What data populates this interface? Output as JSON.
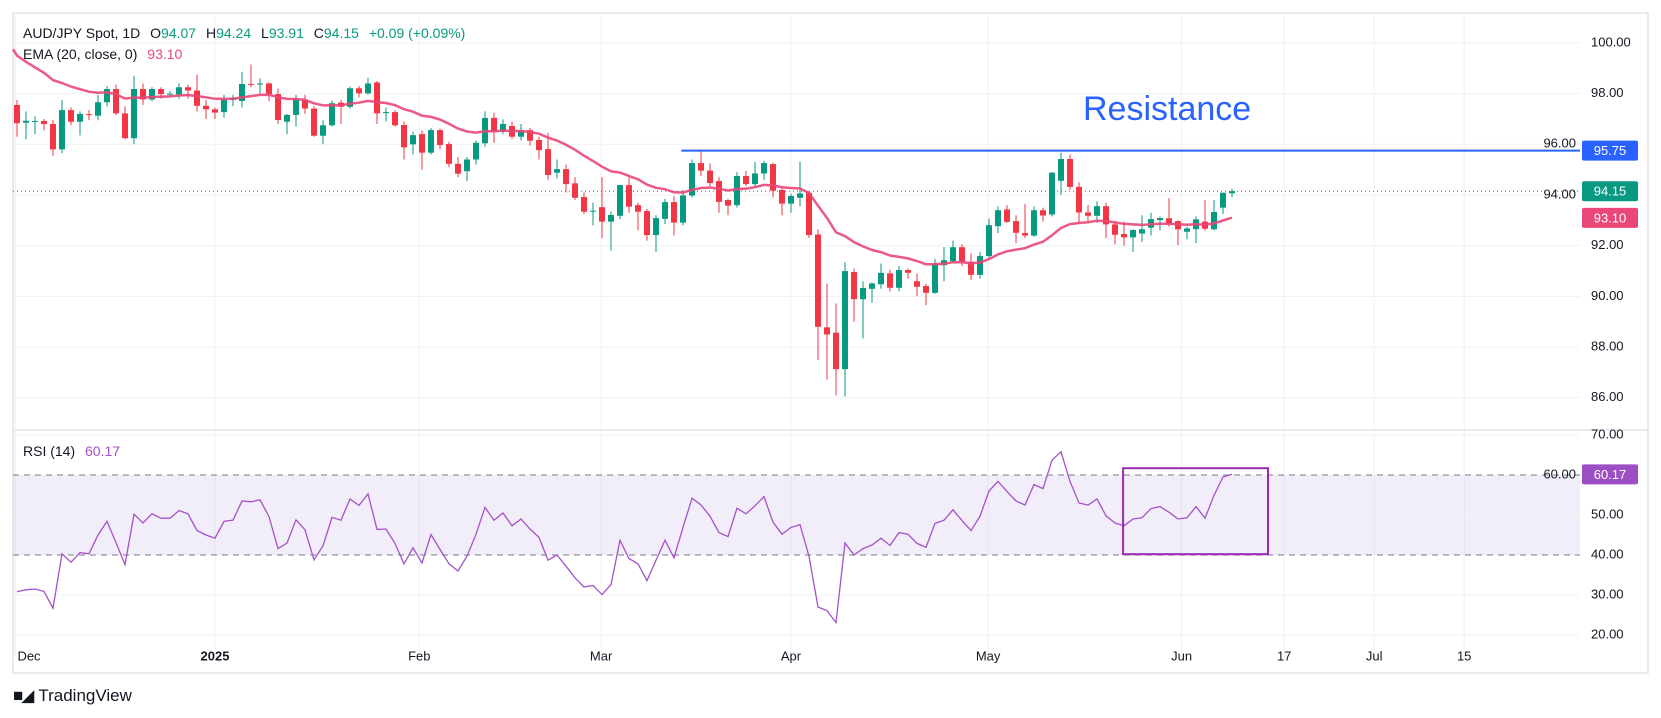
{
  "header": {
    "symbol": "AUD/JPY Spot, 1D",
    "open_label": "O",
    "open": "94.07",
    "high_label": "H",
    "high": "94.24",
    "low_label": "L",
    "low": "93.91",
    "close_label": "C",
    "close": "94.15",
    "change": "+0.09 (+0.09%)",
    "ema_label": "EMA (20, close, 0)",
    "ema_value": "93.10",
    "rsi_label": "RSI (14)",
    "rsi_value": "60.17"
  },
  "branding": {
    "logo_text": "TradingView",
    "logo_mark": "TV"
  },
  "colors": {
    "up": "#089981",
    "down": "#f23645",
    "ema": "#e94777",
    "rsi": "#a552c9",
    "resistance": "#2962ff",
    "rsi_box": "#9c27b0"
  },
  "chart_data": [
    {
      "type": "candlestick",
      "title": "AUD/JPY Spot, 1D",
      "ylim": [
        85.5,
        100.6
      ],
      "yticks": [
        "100.00",
        "98.00",
        "96.00",
        "94.00",
        "92.00",
        "90.00",
        "88.00",
        "86.00"
      ],
      "ytick_values": [
        100,
        98,
        96,
        94,
        92,
        90,
        88,
        86
      ],
      "xticks": [
        {
          "label": "Dec",
          "bar": -0.2,
          "bold": false
        },
        {
          "label": "2025",
          "bar": 22,
          "bold": true
        },
        {
          "label": "Feb",
          "bar": 44.7,
          "bold": false
        },
        {
          "label": "Mar",
          "bar": 64.9,
          "bold": false
        },
        {
          "label": "Apr",
          "bar": 86,
          "bold": false
        },
        {
          "label": "May",
          "bar": 107.9,
          "bold": false
        },
        {
          "label": "Jun",
          "bar": 129.4,
          "bold": false
        },
        {
          "label": "17",
          "bar": 140.8,
          "bold": false
        },
        {
          "label": "Jul",
          "bar": 150.8,
          "bold": false
        },
        {
          "label": "15",
          "bar": 160.8,
          "bold": false
        }
      ],
      "ohlc": [
        [
          97.55,
          97.75,
          96.3,
          96.83
        ],
        [
          96.85,
          97.3,
          96.2,
          96.93
        ],
        [
          96.92,
          97.1,
          96.4,
          96.92
        ],
        [
          96.92,
          97.0,
          96.55,
          96.8
        ],
        [
          96.8,
          96.95,
          95.55,
          95.8
        ],
        [
          95.8,
          97.75,
          95.65,
          97.35
        ],
        [
          97.35,
          97.45,
          96.75,
          96.89
        ],
        [
          96.89,
          97.3,
          96.35,
          97.2
        ],
        [
          97.19,
          97.35,
          96.95,
          97.16
        ],
        [
          97.13,
          97.95,
          96.95,
          97.66
        ],
        [
          97.66,
          98.3,
          97.5,
          98.18
        ],
        [
          98.18,
          98.35,
          97.15,
          97.22
        ],
        [
          97.22,
          97.5,
          96.2,
          96.24
        ],
        [
          96.24,
          98.7,
          96.0,
          98.18
        ],
        [
          98.18,
          98.4,
          97.55,
          97.77
        ],
        [
          97.77,
          98.25,
          97.7,
          98.18
        ],
        [
          98.18,
          98.25,
          97.8,
          97.98
        ],
        [
          98.0,
          98.1,
          97.9,
          98.0
        ],
        [
          97.97,
          98.4,
          97.8,
          98.25
        ],
        [
          98.25,
          98.35,
          97.8,
          98.12
        ],
        [
          98.12,
          98.75,
          97.3,
          97.52
        ],
        [
          97.52,
          97.75,
          97.0,
          97.38
        ],
        [
          97.38,
          97.45,
          97.0,
          97.25
        ],
        [
          97.27,
          97.95,
          97.05,
          97.75
        ],
        [
          97.75,
          97.95,
          97.5,
          97.84
        ],
        [
          97.71,
          98.85,
          97.45,
          98.38
        ],
        [
          98.38,
          99.15,
          98.25,
          98.37
        ],
        [
          98.37,
          98.6,
          98.0,
          98.4
        ],
        [
          98.4,
          98.45,
          97.7,
          97.98
        ],
        [
          97.98,
          98.2,
          96.8,
          96.96
        ],
        [
          96.89,
          97.2,
          96.4,
          97.16
        ],
        [
          97.16,
          97.95,
          96.7,
          97.75
        ],
        [
          97.75,
          97.95,
          97.2,
          97.41
        ],
        [
          97.41,
          97.5,
          96.3,
          96.34
        ],
        [
          96.34,
          96.95,
          96.0,
          96.75
        ],
        [
          96.75,
          97.73,
          96.7,
          97.62
        ],
        [
          97.64,
          97.75,
          96.8,
          97.48
        ],
        [
          97.48,
          98.28,
          97.4,
          98.21
        ],
        [
          98.21,
          98.3,
          97.85,
          98.01
        ],
        [
          98.01,
          98.62,
          97.95,
          98.4
        ],
        [
          98.44,
          98.5,
          96.8,
          97.22
        ],
        [
          97.27,
          97.45,
          96.9,
          97.27
        ],
        [
          97.27,
          97.35,
          96.7,
          96.75
        ],
        [
          96.76,
          96.9,
          95.4,
          95.88
        ],
        [
          96.0,
          96.5,
          95.6,
          96.36
        ],
        [
          96.4,
          96.55,
          95.0,
          95.67
        ],
        [
          95.67,
          96.65,
          95.6,
          96.56
        ],
        [
          96.56,
          96.62,
          95.8,
          95.97
        ],
        [
          96.01,
          96.1,
          95.1,
          95.23
        ],
        [
          95.23,
          95.5,
          94.7,
          94.84
        ],
        [
          94.94,
          95.5,
          94.55,
          95.4
        ],
        [
          95.4,
          96.15,
          95.2,
          96.06
        ],
        [
          96.04,
          97.3,
          95.9,
          97.04
        ],
        [
          97.04,
          97.25,
          96.05,
          96.5
        ],
        [
          96.5,
          96.98,
          96.4,
          96.8
        ],
        [
          96.72,
          96.9,
          96.2,
          96.3
        ],
        [
          96.3,
          96.8,
          96.15,
          96.56
        ],
        [
          96.56,
          96.65,
          95.95,
          96.14
        ],
        [
          96.17,
          96.3,
          95.4,
          95.77
        ],
        [
          95.81,
          96.45,
          94.6,
          94.79
        ],
        [
          94.88,
          95.4,
          94.65,
          95.02
        ],
        [
          95.02,
          95.2,
          94.1,
          94.43
        ],
        [
          94.46,
          94.7,
          93.8,
          93.89
        ],
        [
          93.92,
          94.1,
          93.25,
          93.34
        ],
        [
          93.38,
          93.7,
          92.8,
          93.38
        ],
        [
          93.52,
          94.7,
          92.3,
          92.95
        ],
        [
          92.95,
          93.35,
          91.8,
          93.21
        ],
        [
          93.18,
          94.4,
          93.05,
          94.39
        ],
        [
          94.39,
          94.7,
          93.3,
          93.54
        ],
        [
          93.6,
          93.7,
          92.6,
          93.34
        ],
        [
          93.37,
          93.45,
          92.2,
          92.42
        ],
        [
          92.42,
          93.2,
          91.75,
          93.09
        ],
        [
          93.06,
          93.85,
          92.85,
          93.72
        ],
        [
          93.72,
          93.95,
          92.4,
          92.91
        ],
        [
          92.91,
          94.2,
          92.8,
          93.98
        ],
        [
          93.98,
          95.4,
          93.9,
          95.26
        ],
        [
          95.26,
          95.73,
          94.75,
          94.96
        ],
        [
          94.96,
          95.25,
          94.35,
          94.47
        ],
        [
          94.55,
          94.7,
          93.3,
          93.73
        ],
        [
          93.8,
          93.85,
          93.2,
          93.58
        ],
        [
          93.6,
          94.9,
          93.5,
          94.75
        ],
        [
          94.75,
          94.95,
          94.35,
          94.43
        ],
        [
          94.43,
          95.3,
          94.3,
          94.85
        ],
        [
          94.85,
          95.35,
          94.6,
          95.26
        ],
        [
          95.22,
          95.28,
          93.9,
          94.17
        ],
        [
          94.2,
          94.35,
          93.2,
          93.66
        ],
        [
          93.66,
          94.05,
          93.3,
          93.96
        ],
        [
          93.89,
          95.31,
          93.55,
          94.06
        ],
        [
          94.09,
          94.15,
          92.3,
          92.42
        ],
        [
          92.44,
          92.65,
          87.49,
          88.8
        ],
        [
          88.78,
          90.51,
          86.72,
          88.5
        ],
        [
          88.57,
          89.72,
          86.1,
          87.13
        ],
        [
          87.13,
          91.35,
          86.05,
          91.0
        ],
        [
          90.96,
          91.1,
          89.0,
          89.89
        ],
        [
          89.89,
          90.6,
          88.34,
          90.33
        ],
        [
          90.3,
          90.55,
          89.75,
          90.51
        ],
        [
          90.48,
          91.3,
          90.3,
          90.93
        ],
        [
          90.91,
          91.05,
          90.2,
          90.34
        ],
        [
          90.34,
          91.2,
          90.2,
          91.04
        ],
        [
          91.04,
          91.1,
          90.7,
          90.93
        ],
        [
          90.6,
          90.9,
          90.0,
          90.38
        ],
        [
          90.41,
          90.5,
          89.65,
          90.14
        ],
        [
          90.14,
          91.48,
          90.1,
          91.29
        ],
        [
          91.23,
          91.95,
          90.6,
          91.43
        ],
        [
          91.39,
          92.2,
          91.3,
          91.94
        ],
        [
          91.94,
          92.05,
          91.2,
          91.37
        ],
        [
          91.37,
          91.7,
          90.65,
          90.85
        ],
        [
          90.85,
          91.75,
          90.7,
          91.59
        ],
        [
          91.59,
          93.07,
          91.5,
          92.81
        ],
        [
          92.77,
          93.55,
          92.5,
          93.4
        ],
        [
          93.43,
          93.6,
          92.9,
          92.94
        ],
        [
          92.97,
          93.2,
          92.1,
          92.51
        ],
        [
          92.5,
          93.65,
          92.3,
          92.4
        ],
        [
          92.4,
          93.55,
          92.35,
          93.4
        ],
        [
          93.4,
          93.5,
          92.95,
          93.19
        ],
        [
          93.23,
          94.9,
          93.15,
          94.88
        ],
        [
          94.56,
          95.67,
          94.0,
          95.42
        ],
        [
          95.42,
          95.6,
          94.2,
          94.32
        ],
        [
          94.32,
          94.5,
          92.9,
          93.31
        ],
        [
          93.31,
          93.6,
          92.95,
          93.18
        ],
        [
          93.18,
          93.75,
          92.9,
          93.56
        ],
        [
          93.56,
          93.7,
          92.3,
          92.84
        ],
        [
          92.84,
          92.95,
          92.05,
          92.43
        ],
        [
          92.46,
          92.95,
          92.0,
          92.33
        ],
        [
          92.33,
          92.65,
          91.75,
          92.62
        ],
        [
          92.48,
          93.2,
          92.15,
          92.65
        ],
        [
          92.71,
          93.3,
          92.4,
          93.05
        ],
        [
          93.01,
          93.15,
          92.6,
          93.09
        ],
        [
          93.08,
          93.87,
          92.75,
          92.86
        ],
        [
          92.97,
          93.0,
          92.03,
          92.65
        ],
        [
          92.55,
          92.75,
          92.25,
          92.68
        ],
        [
          92.65,
          93.15,
          92.1,
          93.04
        ],
        [
          92.95,
          93.8,
          92.6,
          92.67
        ],
        [
          92.65,
          93.8,
          92.6,
          93.33
        ],
        [
          93.5,
          94.1,
          93.25,
          94.09
        ],
        [
          94.07,
          94.24,
          93.91,
          94.15
        ]
      ],
      "ema": {
        "period": 20,
        "last": 93.1
      },
      "resistance": {
        "label": "Resistance",
        "value": 95.75,
        "value_label": "95.75",
        "start_bar": 73.8
      },
      "last_price": {
        "value": 94.15,
        "label": "94.15"
      },
      "ema_badge": {
        "value": 93.1,
        "label": "93.10"
      }
    },
    {
      "type": "line",
      "title": "RSI (14)",
      "ylim": [
        20,
        70
      ],
      "yticks": [
        "70.00",
        "60.00",
        "50.00",
        "40.00",
        "30.00",
        "20.00"
      ],
      "ytick_values": [
        70,
        60,
        50,
        40,
        30,
        20
      ],
      "band": [
        40,
        60
      ],
      "values": [
        30.8,
        31.3,
        31.5,
        30.9,
        26.7,
        40.3,
        38.2,
        40.6,
        40.3,
        45.0,
        48.4,
        43.1,
        37.6,
        50.2,
        48.0,
        50.3,
        49.2,
        49.2,
        51.1,
        50.3,
        46.1,
        45.0,
        44.2,
        48.4,
        48.7,
        53.5,
        53.3,
        53.8,
        49.6,
        41.6,
        43.0,
        48.8,
        46.3,
        38.8,
        42.3,
        49.4,
        48.7,
        54.0,
        52.4,
        55.3,
        46.4,
        46.5,
        42.9,
        37.8,
        41.8,
        38.0,
        45.1,
        41.4,
        37.8,
        36.0,
        39.7,
        45.2,
        51.9,
        48.7,
        50.5,
        47.3,
        49.0,
        46.5,
        44.4,
        38.7,
        40.0,
        37.2,
        34.3,
        32.0,
        32.4,
        30.1,
        32.6,
        43.7,
        39.1,
        37.8,
        33.6,
        38.7,
        43.7,
        39.3,
        46.9,
        54.2,
        52.5,
        49.7,
        45.6,
        44.6,
        51.7,
        50.3,
        52.3,
        54.6,
        48.2,
        45.2,
        46.9,
        47.6,
        39.7,
        27.0,
        26.1,
        23.1,
        43.0,
        40.0,
        41.6,
        42.5,
        44.2,
        42.4,
        45.6,
        45.2,
        42.9,
        41.9,
        47.9,
        48.7,
        51.3,
        48.6,
        46.1,
        49.7,
        56.0,
        58.4,
        55.9,
        53.5,
        52.5,
        57.6,
        56.6,
        63.7,
        65.8,
        58.4,
        53.0,
        52.5,
        54.0,
        49.8,
        48.0,
        47.3,
        49.0,
        49.3,
        51.6,
        52.1,
        50.7,
        49.0,
        49.3,
        52.1,
        49.2,
        54.9,
        59.5,
        60.17
      ],
      "last_label": "60.17",
      "highlight_box": {
        "from_bar": 122.9,
        "to_bar": 139,
        "rsi_top": 61.7,
        "rsi_bottom": 40.2
      }
    }
  ]
}
